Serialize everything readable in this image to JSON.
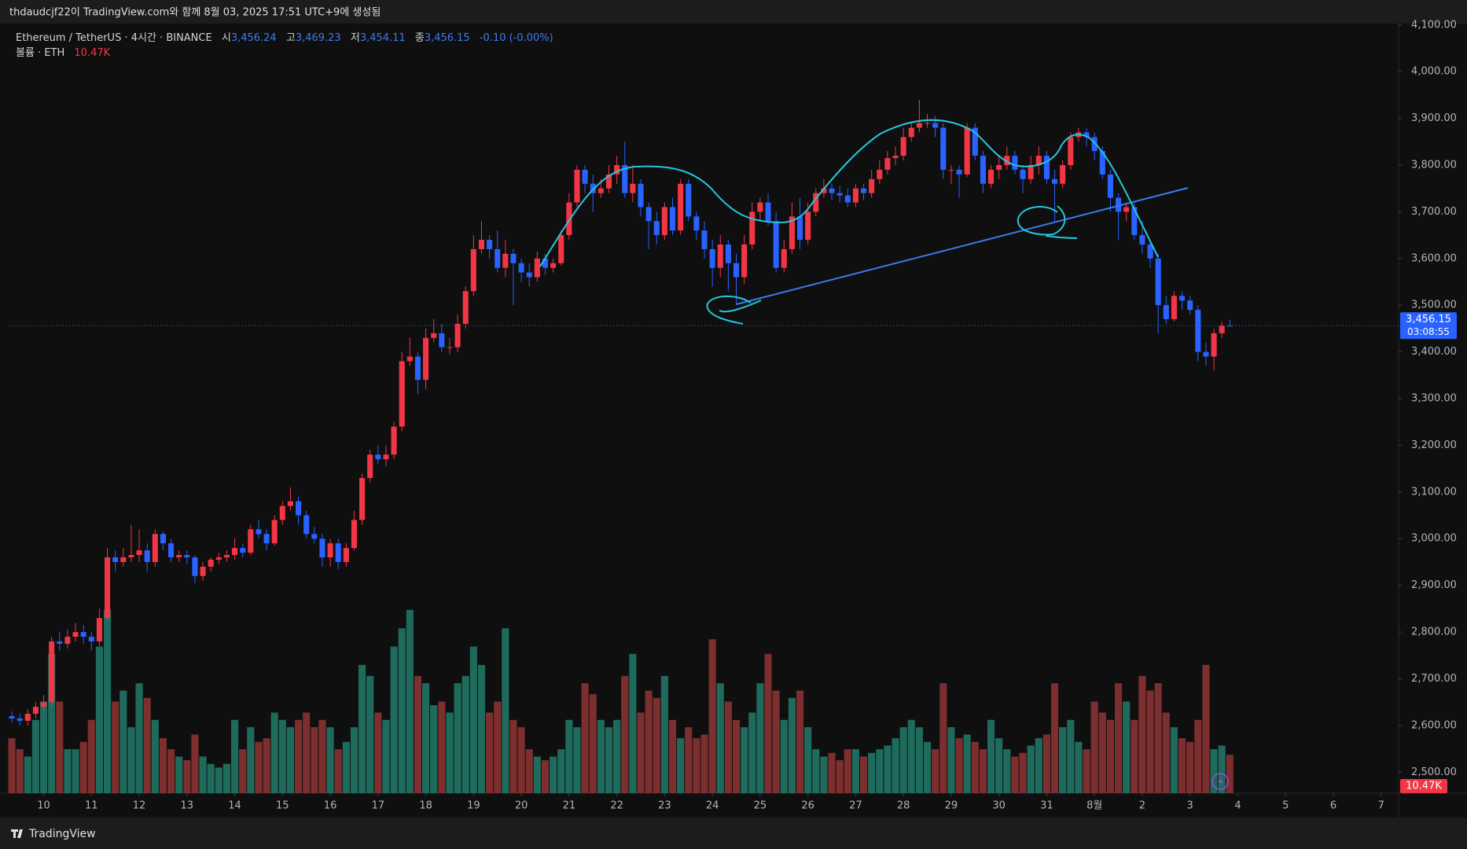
{
  "header": {
    "title": "thdaudcjf22이 TradingView.com와 함께 8월 03, 2025 17:51 UTC+9에 생성됨"
  },
  "chart_data": {
    "type": "candlestick",
    "symbol": "Ethereum / TetherUS · 4시간 · BINANCE",
    "legend": {
      "open_label": "시",
      "open": "3,456.24",
      "high_label": "고",
      "high": "3,469.23",
      "low_label": "저",
      "low": "3,454.11",
      "close_label": "종",
      "close": "3,456.15",
      "change": "-0.10 (-0.00%)"
    },
    "volume_label": "볼륨 · ETH",
    "volume_value": "10.47K",
    "up_color": "#f23645",
    "down_color": "#2962ff",
    "volume_up_color": "#1e6b5d",
    "volume_down_color": "#7d2e2e",
    "candles": [
      [
        2620,
        2630,
        2605,
        2615,
        15000
      ],
      [
        2615,
        2625,
        2600,
        2610,
        12000
      ],
      [
        2610,
        2635,
        2600,
        2625,
        10000
      ],
      [
        2625,
        2650,
        2615,
        2640,
        20000
      ],
      [
        2640,
        2665,
        2630,
        2650,
        25000
      ],
      [
        2650,
        2790,
        2640,
        2780,
        38000
      ],
      [
        2780,
        2800,
        2760,
        2775,
        25000
      ],
      [
        2775,
        2805,
        2765,
        2790,
        12000
      ],
      [
        2790,
        2820,
        2780,
        2800,
        12000
      ],
      [
        2800,
        2815,
        2775,
        2790,
        14000
      ],
      [
        2790,
        2800,
        2760,
        2780,
        20000
      ],
      [
        2780,
        2850,
        2770,
        2830,
        40000
      ],
      [
        2830,
        2980,
        2825,
        2960,
        50000
      ],
      [
        2960,
        2975,
        2930,
        2950,
        25000
      ],
      [
        2950,
        2980,
        2940,
        2960,
        28000
      ],
      [
        2960,
        3030,
        2950,
        2965,
        18000
      ],
      [
        2965,
        3020,
        2950,
        2975,
        30000
      ],
      [
        2975,
        2990,
        2930,
        2950,
        26000
      ],
      [
        2950,
        3020,
        2940,
        3010,
        20000
      ],
      [
        3010,
        3015,
        2975,
        2990,
        15000
      ],
      [
        2990,
        3000,
        2950,
        2960,
        12000
      ],
      [
        2960,
        2975,
        2950,
        2965,
        10000
      ],
      [
        2965,
        2975,
        2945,
        2960,
        9000
      ],
      [
        2960,
        2965,
        2905,
        2920,
        16000
      ],
      [
        2920,
        2950,
        2910,
        2940,
        10000
      ],
      [
        2940,
        2960,
        2930,
        2955,
        8000
      ],
      [
        2955,
        2970,
        2945,
        2960,
        7000
      ],
      [
        2960,
        2975,
        2950,
        2965,
        8000
      ],
      [
        2965,
        3000,
        2955,
        2980,
        20000
      ],
      [
        2980,
        2990,
        2960,
        2970,
        12000
      ],
      [
        2970,
        3030,
        2965,
        3020,
        18000
      ],
      [
        3020,
        3040,
        3000,
        3010,
        14000
      ],
      [
        3010,
        3020,
        2975,
        2990,
        15000
      ],
      [
        2990,
        3050,
        2985,
        3040,
        22000
      ],
      [
        3040,
        3080,
        3030,
        3070,
        20000
      ],
      [
        3070,
        3110,
        3060,
        3080,
        18000
      ],
      [
        3080,
        3090,
        3030,
        3050,
        20000
      ],
      [
        3050,
        3060,
        3000,
        3010,
        22000
      ],
      [
        3010,
        3025,
        2990,
        3000,
        18000
      ],
      [
        3000,
        3010,
        2940,
        2960,
        20000
      ],
      [
        2960,
        3000,
        2940,
        2990,
        18000
      ],
      [
        2990,
        3000,
        2935,
        2950,
        12000
      ],
      [
        2950,
        2990,
        2940,
        2980,
        14000
      ],
      [
        2980,
        3060,
        2975,
        3040,
        18000
      ],
      [
        3040,
        3140,
        3030,
        3130,
        35000
      ],
      [
        3130,
        3190,
        3120,
        3180,
        32000
      ],
      [
        3180,
        3200,
        3160,
        3170,
        22000
      ],
      [
        3170,
        3200,
        3155,
        3180,
        20000
      ],
      [
        3180,
        3250,
        3170,
        3240,
        40000
      ],
      [
        3240,
        3400,
        3230,
        3380,
        45000
      ],
      [
        3380,
        3430,
        3370,
        3390,
        50000
      ],
      [
        3390,
        3400,
        3310,
        3340,
        32000
      ],
      [
        3340,
        3450,
        3320,
        3430,
        30000
      ],
      [
        3430,
        3470,
        3420,
        3440,
        24000
      ],
      [
        3440,
        3460,
        3400,
        3410,
        25000
      ],
      [
        3410,
        3430,
        3395,
        3410,
        22000
      ],
      [
        3410,
        3480,
        3400,
        3460,
        30000
      ],
      [
        3460,
        3540,
        3450,
        3530,
        32000
      ],
      [
        3530,
        3650,
        3520,
        3620,
        40000
      ],
      [
        3620,
        3680,
        3610,
        3640,
        35000
      ],
      [
        3640,
        3650,
        3600,
        3620,
        22000
      ],
      [
        3620,
        3660,
        3570,
        3580,
        25000
      ],
      [
        3580,
        3640,
        3560,
        3610,
        45000
      ],
      [
        3610,
        3620,
        3500,
        3590,
        20000
      ],
      [
        3590,
        3600,
        3550,
        3570,
        18000
      ],
      [
        3570,
        3590,
        3540,
        3560,
        12000
      ],
      [
        3560,
        3615,
        3550,
        3600,
        10000
      ],
      [
        3600,
        3610,
        3565,
        3580,
        9000
      ],
      [
        3580,
        3600,
        3570,
        3590,
        10000
      ],
      [
        3590,
        3660,
        3585,
        3650,
        12000
      ],
      [
        3650,
        3740,
        3640,
        3720,
        20000
      ],
      [
        3720,
        3800,
        3710,
        3790,
        18000
      ],
      [
        3790,
        3800,
        3740,
        3760,
        30000
      ],
      [
        3760,
        3780,
        3700,
        3740,
        27000
      ],
      [
        3740,
        3770,
        3730,
        3750,
        20000
      ],
      [
        3750,
        3800,
        3740,
        3780,
        18000
      ],
      [
        3780,
        3820,
        3760,
        3800,
        20000
      ],
      [
        3800,
        3850,
        3730,
        3740,
        32000
      ],
      [
        3740,
        3800,
        3720,
        3760,
        38000
      ],
      [
        3760,
        3770,
        3690,
        3710,
        22000
      ],
      [
        3710,
        3720,
        3620,
        3680,
        28000
      ],
      [
        3680,
        3700,
        3630,
        3650,
        26000
      ],
      [
        3650,
        3720,
        3640,
        3710,
        32000
      ],
      [
        3710,
        3730,
        3650,
        3660,
        20000
      ],
      [
        3660,
        3770,
        3650,
        3760,
        15000
      ],
      [
        3760,
        3770,
        3680,
        3690,
        18000
      ],
      [
        3690,
        3700,
        3640,
        3660,
        15000
      ],
      [
        3660,
        3680,
        3600,
        3620,
        16000
      ],
      [
        3620,
        3640,
        3540,
        3580,
        42000
      ],
      [
        3580,
        3650,
        3560,
        3630,
        30000
      ],
      [
        3630,
        3640,
        3530,
        3590,
        25000
      ],
      [
        3590,
        3610,
        3500,
        3560,
        20000
      ],
      [
        3560,
        3650,
        3545,
        3630,
        18000
      ],
      [
        3630,
        3720,
        3620,
        3700,
        22000
      ],
      [
        3700,
        3730,
        3680,
        3720,
        30000
      ],
      [
        3720,
        3740,
        3670,
        3680,
        38000
      ],
      [
        3680,
        3700,
        3570,
        3580,
        28000
      ],
      [
        3580,
        3640,
        3570,
        3620,
        20000
      ],
      [
        3620,
        3720,
        3610,
        3690,
        26000
      ],
      [
        3690,
        3730,
        3620,
        3640,
        28000
      ],
      [
        3640,
        3720,
        3630,
        3700,
        18000
      ],
      [
        3700,
        3750,
        3690,
        3740,
        12000
      ],
      [
        3740,
        3770,
        3730,
        3750,
        10000
      ],
      [
        3750,
        3760,
        3725,
        3740,
        11000
      ],
      [
        3740,
        3755,
        3720,
        3735,
        9000
      ],
      [
        3735,
        3750,
        3710,
        3720,
        12000
      ],
      [
        3720,
        3760,
        3710,
        3750,
        12000
      ],
      [
        3750,
        3760,
        3725,
        3740,
        10000
      ],
      [
        3740,
        3790,
        3730,
        3770,
        11000
      ],
      [
        3770,
        3810,
        3760,
        3790,
        12000
      ],
      [
        3790,
        3830,
        3780,
        3815,
        13000
      ],
      [
        3815,
        3840,
        3800,
        3820,
        15000
      ],
      [
        3820,
        3880,
        3810,
        3860,
        18000
      ],
      [
        3860,
        3890,
        3850,
        3880,
        20000
      ],
      [
        3880,
        3940,
        3870,
        3890,
        18000
      ],
      [
        3890,
        3910,
        3880,
        3890,
        14000
      ],
      [
        3890,
        3905,
        3860,
        3880,
        12000
      ],
      [
        3880,
        3890,
        3770,
        3790,
        30000
      ],
      [
        3790,
        3800,
        3760,
        3790,
        18000
      ],
      [
        3790,
        3800,
        3730,
        3780,
        15000
      ],
      [
        3780,
        3890,
        3775,
        3880,
        16000
      ],
      [
        3880,
        3890,
        3810,
        3820,
        14000
      ],
      [
        3820,
        3830,
        3740,
        3760,
        12000
      ],
      [
        3760,
        3800,
        3750,
        3790,
        20000
      ],
      [
        3790,
        3820,
        3770,
        3800,
        15000
      ],
      [
        3800,
        3840,
        3790,
        3820,
        12000
      ],
      [
        3820,
        3830,
        3780,
        3790,
        10000
      ],
      [
        3790,
        3800,
        3740,
        3770,
        11000
      ],
      [
        3770,
        3820,
        3760,
        3800,
        13000
      ],
      [
        3800,
        3840,
        3780,
        3820,
        15000
      ],
      [
        3820,
        3830,
        3760,
        3770,
        16000
      ],
      [
        3770,
        3790,
        3680,
        3760,
        30000
      ],
      [
        3760,
        3810,
        3750,
        3800,
        18000
      ],
      [
        3800,
        3870,
        3790,
        3860,
        20000
      ],
      [
        3860,
        3880,
        3850,
        3870,
        14000
      ],
      [
        3870,
        3880,
        3840,
        3860,
        12000
      ],
      [
        3860,
        3870,
        3810,
        3830,
        25000
      ],
      [
        3830,
        3840,
        3770,
        3780,
        22000
      ],
      [
        3780,
        3790,
        3700,
        3730,
        20000
      ],
      [
        3730,
        3740,
        3640,
        3700,
        30000
      ],
      [
        3700,
        3720,
        3680,
        3710,
        25000
      ],
      [
        3710,
        3720,
        3640,
        3650,
        20000
      ],
      [
        3650,
        3680,
        3610,
        3630,
        32000
      ],
      [
        3630,
        3640,
        3580,
        3600,
        28000
      ],
      [
        3600,
        3610,
        3440,
        3500,
        30000
      ],
      [
        3500,
        3520,
        3460,
        3470,
        22000
      ],
      [
        3470,
        3530,
        3465,
        3520,
        18000
      ],
      [
        3520,
        3530,
        3490,
        3510,
        15000
      ],
      [
        3510,
        3520,
        3480,
        3490,
        14000
      ],
      [
        3490,
        3500,
        3380,
        3400,
        20000
      ],
      [
        3400,
        3420,
        3370,
        3390,
        35000
      ],
      [
        3390,
        3450,
        3360,
        3440,
        12000
      ],
      [
        3440,
        3465,
        3430,
        3456,
        13000
      ],
      [
        3456.24,
        3469.23,
        3454.11,
        3456.15,
        10470
      ]
    ],
    "xlim": [
      -0.3,
      174.2
    ],
    "xticks": [
      {
        "value": 4,
        "label": "10"
      },
      {
        "value": 10,
        "label": "11"
      },
      {
        "value": 16,
        "label": "12"
      },
      {
        "value": 22,
        "label": "13"
      },
      {
        "value": 28,
        "label": "14"
      },
      {
        "value": 34,
        "label": "15"
      },
      {
        "value": 40,
        "label": "16"
      },
      {
        "value": 46,
        "label": "17"
      },
      {
        "value": 52,
        "label": "18"
      },
      {
        "value": 58,
        "label": "19"
      },
      {
        "value": 64,
        "label": "20"
      },
      {
        "value": 70,
        "label": "21"
      },
      {
        "value": 76,
        "label": "22"
      },
      {
        "value": 82,
        "label": "23"
      },
      {
        "value": 88,
        "label": "24"
      },
      {
        "value": 94,
        "label": "25"
      },
      {
        "value": 100,
        "label": "26"
      },
      {
        "value": 106,
        "label": "27"
      },
      {
        "value": 112,
        "label": "28"
      },
      {
        "value": 118,
        "label": "29"
      },
      {
        "value": 124,
        "label": "30"
      },
      {
        "value": 130,
        "label": "31"
      },
      {
        "value": 136,
        "label": "8월"
      },
      {
        "value": 142,
        "label": "2"
      },
      {
        "value": 148,
        "label": "3"
      },
      {
        "value": 154,
        "label": "4"
      },
      {
        "value": 160,
        "label": "5"
      },
      {
        "value": 166,
        "label": "6"
      },
      {
        "value": 172,
        "label": "7"
      }
    ],
    "ylim": [
      2455,
      4103
    ],
    "yticks": [
      {
        "value": 2500,
        "label": "2,500.00"
      },
      {
        "value": 2600,
        "label": "2,600.00"
      },
      {
        "value": 2700,
        "label": "2,700.00"
      },
      {
        "value": 2800,
        "label": "2,800.00"
      },
      {
        "value": 2900,
        "label": "2,900.00"
      },
      {
        "value": 3000,
        "label": "3,000.00"
      },
      {
        "value": 3100,
        "label": "3,100.00"
      },
      {
        "value": 3200,
        "label": "3,200.00"
      },
      {
        "value": 3300,
        "label": "3,300.00"
      },
      {
        "value": 3400,
        "label": "3,400.00"
      },
      {
        "value": 3500,
        "label": "3,500.00"
      },
      {
        "value": 3600,
        "label": "3,600.00"
      },
      {
        "value": 3700,
        "label": "3,700.00"
      },
      {
        "value": 3800,
        "label": "3,800.00"
      },
      {
        "value": 3900,
        "label": "3,900.00"
      },
      {
        "value": 4000,
        "label": "4,000.00"
      },
      {
        "value": 4100,
        "label": "4,100.00"
      }
    ],
    "volume_ylim": [
      0,
      210000
    ],
    "grid": false,
    "last_price": {
      "value": 3456.15,
      "label": "3,456.15",
      "countdown": "03:08:55"
    }
  },
  "footer": {
    "brand": "TradingView"
  }
}
